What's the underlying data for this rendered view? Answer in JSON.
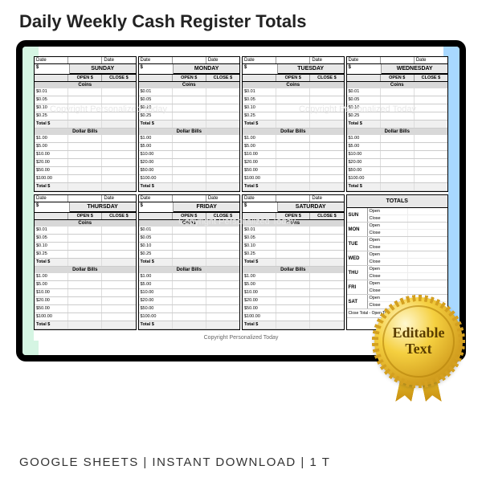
{
  "title": "Daily Weekly Cash Register Totals",
  "footer": "GOOGLE SHEETS | INSTANT DOWNLOAD | 1 T",
  "badge_line1": "Editable",
  "badge_line2": "Text",
  "copyright": "Copyright Personalized Today",
  "watermark": "Copyright Personalized Today",
  "labels": {
    "date": "Date",
    "dollar": "$",
    "open": "OPEN $",
    "close": "CLOSE $",
    "coins": "Coins",
    "bills": "Dollar Bills",
    "total": "Total $",
    "totals_head": "TOTALS",
    "open_s": "Open",
    "close_s": "Close",
    "close_minus_open": "Close Total - Open Total"
  },
  "days_top": [
    "SUNDAY",
    "MONDAY",
    "TUESDAY",
    "WEDNESDAY"
  ],
  "days_mid": [
    "THURSDAY",
    "FRIDAY",
    "SATURDAY"
  ],
  "short_days": [
    "SUN",
    "MON",
    "TUE",
    "WED",
    "THU",
    "FRI",
    "SAT"
  ],
  "coins": [
    "$0.01",
    "$0.05",
    "$0.10",
    "$0.25"
  ],
  "bills": [
    "$1.00",
    "$5.00",
    "$10.00",
    "$20.00",
    "$50.00",
    "$100.00"
  ],
  "colors": {
    "accent_left": "#d5f5e3",
    "accent_right": "#a8d8ff",
    "header_bg": "#e8e8e8",
    "section_bg": "#d8d8d8",
    "border": "#000000",
    "gold1": "#f5d040",
    "gold2": "#b8860b"
  }
}
